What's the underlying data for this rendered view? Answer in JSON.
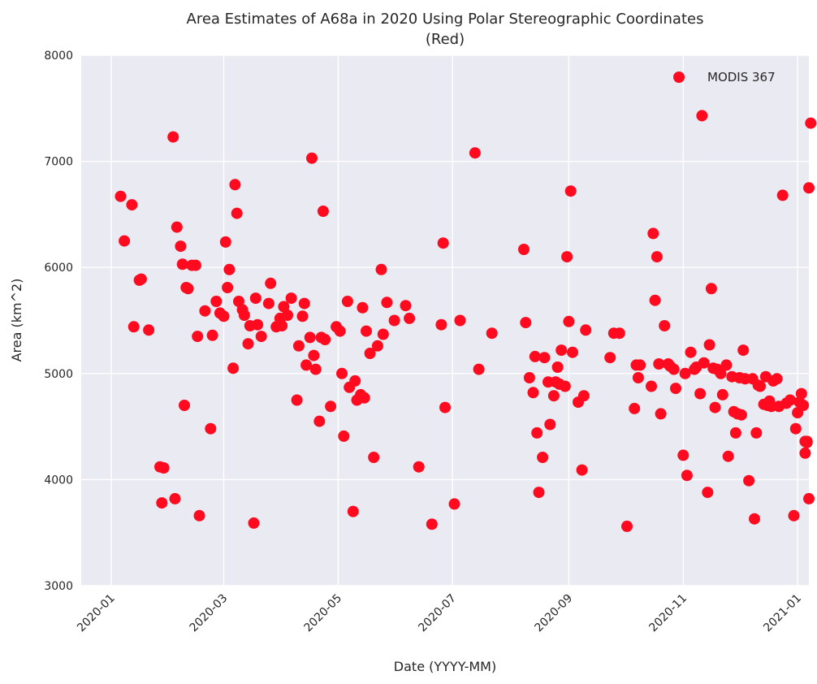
{
  "chart_data": {
    "type": "scatter",
    "title": "Area Estimates of A68a in 2020 Using Polar Stereographic Coordinates",
    "subtitle": "(Red)",
    "xlabel": "Date (YYYY-MM)",
    "ylabel": "Area (km^2)",
    "xlim": [
      "2019-12-16",
      "2021-01-07"
    ],
    "ylim": [
      3000,
      8000
    ],
    "x_ticks": [
      "2020-01",
      "2020-03",
      "2020-05",
      "2020-07",
      "2020-09",
      "2020-11",
      "2021-01"
    ],
    "y_ticks": [
      "3000",
      "4000",
      "5000",
      "6000",
      "7000",
      "8000"
    ],
    "grid": true,
    "legend_position": "top-right",
    "background_color": "#eaeaf2",
    "series": [
      {
        "name": "MODIS 367",
        "color": "#ff0a1f",
        "points": [
          [
            "2020-01-06",
            6670
          ],
          [
            "2020-01-08",
            6250
          ],
          [
            "2020-01-12",
            6590
          ],
          [
            "2020-01-13",
            5440
          ],
          [
            "2020-01-16",
            5880
          ],
          [
            "2020-01-17",
            5890
          ],
          [
            "2020-01-21",
            5410
          ],
          [
            "2020-01-27",
            4120
          ],
          [
            "2020-01-28",
            3780
          ],
          [
            "2020-01-29",
            4110
          ],
          [
            "2020-02-03",
            7230
          ],
          [
            "2020-02-04",
            3820
          ],
          [
            "2020-02-05",
            6380
          ],
          [
            "2020-02-07",
            6200
          ],
          [
            "2020-02-08",
            6030
          ],
          [
            "2020-02-09",
            4700
          ],
          [
            "2020-02-10",
            5810
          ],
          [
            "2020-02-11",
            5800
          ],
          [
            "2020-02-13",
            6020
          ],
          [
            "2020-02-15",
            6020
          ],
          [
            "2020-02-16",
            5350
          ],
          [
            "2020-02-17",
            3660
          ],
          [
            "2020-02-20",
            5590
          ],
          [
            "2020-02-23",
            4480
          ],
          [
            "2020-02-24",
            5360
          ],
          [
            "2020-02-26",
            5680
          ],
          [
            "2020-02-28",
            5570
          ],
          [
            "2020-03-01",
            5540
          ],
          [
            "2020-03-02",
            6240
          ],
          [
            "2020-03-03",
            5810
          ],
          [
            "2020-03-04",
            5980
          ],
          [
            "2020-03-06",
            5050
          ],
          [
            "2020-03-07",
            6780
          ],
          [
            "2020-03-08",
            6510
          ],
          [
            "2020-03-09",
            5680
          ],
          [
            "2020-03-11",
            5600
          ],
          [
            "2020-03-12",
            5550
          ],
          [
            "2020-03-14",
            5280
          ],
          [
            "2020-03-15",
            5450
          ],
          [
            "2020-03-17",
            3590
          ],
          [
            "2020-03-18",
            5710
          ],
          [
            "2020-03-19",
            5460
          ],
          [
            "2020-03-21",
            5350
          ],
          [
            "2020-03-26",
            5850
          ],
          [
            "2020-03-25",
            5660
          ],
          [
            "2020-03-29",
            5440
          ],
          [
            "2020-03-31",
            5520
          ],
          [
            "2020-04-01",
            5450
          ],
          [
            "2020-04-02",
            5630
          ],
          [
            "2020-04-04",
            5550
          ],
          [
            "2020-04-06",
            5710
          ],
          [
            "2020-04-09",
            4750
          ],
          [
            "2020-04-10",
            5260
          ],
          [
            "2020-04-12",
            5540
          ],
          [
            "2020-04-13",
            5660
          ],
          [
            "2020-04-14",
            5080
          ],
          [
            "2020-04-16",
            5340
          ],
          [
            "2020-04-17",
            7030
          ],
          [
            "2020-04-18",
            5170
          ],
          [
            "2020-04-19",
            5040
          ],
          [
            "2020-04-21",
            4550
          ],
          [
            "2020-04-22",
            5340
          ],
          [
            "2020-04-23",
            6530
          ],
          [
            "2020-04-24",
            5320
          ],
          [
            "2020-04-27",
            4690
          ],
          [
            "2020-04-30",
            5440
          ],
          [
            "2020-05-02",
            5400
          ],
          [
            "2020-05-03",
            5000
          ],
          [
            "2020-05-04",
            4410
          ],
          [
            "2020-05-06",
            5680
          ],
          [
            "2020-05-07",
            4870
          ],
          [
            "2020-05-09",
            3700
          ],
          [
            "2020-05-10",
            4930
          ],
          [
            "2020-05-11",
            4750
          ],
          [
            "2020-05-13",
            4800
          ],
          [
            "2020-05-14",
            5620
          ],
          [
            "2020-05-15",
            4770
          ],
          [
            "2020-05-16",
            5400
          ],
          [
            "2020-05-18",
            5190
          ],
          [
            "2020-05-20",
            4210
          ],
          [
            "2020-05-22",
            5260
          ],
          [
            "2020-05-24",
            5980
          ],
          [
            "2020-05-25",
            5370
          ],
          [
            "2020-05-27",
            5670
          ],
          [
            "2020-05-31",
            5500
          ],
          [
            "2020-06-06",
            5640
          ],
          [
            "2020-06-08",
            5520
          ],
          [
            "2020-06-13",
            4120
          ],
          [
            "2020-06-20",
            3580
          ],
          [
            "2020-06-25",
            5460
          ],
          [
            "2020-06-26",
            6230
          ],
          [
            "2020-06-27",
            4680
          ],
          [
            "2020-07-02",
            3770
          ],
          [
            "2020-07-05",
            5500
          ],
          [
            "2020-07-13",
            7080
          ],
          [
            "2020-07-15",
            5040
          ],
          [
            "2020-07-22",
            5380
          ],
          [
            "2020-08-08",
            6170
          ],
          [
            "2020-08-09",
            5480
          ],
          [
            "2020-08-11",
            4960
          ],
          [
            "2020-08-13",
            4820
          ],
          [
            "2020-08-14",
            5160
          ],
          [
            "2020-08-15",
            4440
          ],
          [
            "2020-08-16",
            3880
          ],
          [
            "2020-08-18",
            4210
          ],
          [
            "2020-08-19",
            5150
          ],
          [
            "2020-08-21",
            4920
          ],
          [
            "2020-08-22",
            4520
          ],
          [
            "2020-08-24",
            4790
          ],
          [
            "2020-08-25",
            4920
          ],
          [
            "2020-08-26",
            5060
          ],
          [
            "2020-08-27",
            4900
          ],
          [
            "2020-08-28",
            5220
          ],
          [
            "2020-08-30",
            4880
          ],
          [
            "2020-08-31",
            6100
          ],
          [
            "2020-09-01",
            5490
          ],
          [
            "2020-09-02",
            6720
          ],
          [
            "2020-09-03",
            5200
          ],
          [
            "2020-09-06",
            4730
          ],
          [
            "2020-09-08",
            4090
          ],
          [
            "2020-09-09",
            4790
          ],
          [
            "2020-09-10",
            5410
          ],
          [
            "2020-09-23",
            5150
          ],
          [
            "2020-09-25",
            5380
          ],
          [
            "2020-09-28",
            5380
          ],
          [
            "2020-10-02",
            3560
          ],
          [
            "2020-10-06",
            4670
          ],
          [
            "2020-10-07",
            5080
          ],
          [
            "2020-10-08",
            4960
          ],
          [
            "2020-10-09",
            5080
          ],
          [
            "2020-10-15",
            4880
          ],
          [
            "2020-10-16",
            6320
          ],
          [
            "2020-10-17",
            5690
          ],
          [
            "2020-10-18",
            6100
          ],
          [
            "2020-10-19",
            5090
          ],
          [
            "2020-10-20",
            4620
          ],
          [
            "2020-10-22",
            5450
          ],
          [
            "2020-10-24",
            5090
          ],
          [
            "2020-10-25",
            5070
          ],
          [
            "2020-10-27",
            5040
          ],
          [
            "2020-10-28",
            4860
          ],
          [
            "2020-11-01",
            4230
          ],
          [
            "2020-11-02",
            5000
          ],
          [
            "2020-11-03",
            4040
          ],
          [
            "2020-11-05",
            5200
          ],
          [
            "2020-11-07",
            5040
          ],
          [
            "2020-11-08",
            5060
          ],
          [
            "2020-11-10",
            4810
          ],
          [
            "2020-11-11",
            7430
          ],
          [
            "2020-11-12",
            5100
          ],
          [
            "2020-11-14",
            3880
          ],
          [
            "2020-11-15",
            5270
          ],
          [
            "2020-11-16",
            5800
          ],
          [
            "2020-11-17",
            5050
          ],
          [
            "2020-11-18",
            4680
          ],
          [
            "2020-11-19",
            5040
          ],
          [
            "2020-11-21",
            5000
          ],
          [
            "2020-11-22",
            4800
          ],
          [
            "2020-11-24",
            5080
          ],
          [
            "2020-11-25",
            4220
          ],
          [
            "2020-11-27",
            4970
          ],
          [
            "2020-11-28",
            4640
          ],
          [
            "2020-11-29",
            4440
          ],
          [
            "2020-11-30",
            4620
          ],
          [
            "2020-12-01",
            4960
          ],
          [
            "2020-12-02",
            4610
          ],
          [
            "2020-12-03",
            5220
          ],
          [
            "2020-12-04",
            4950
          ],
          [
            "2020-12-06",
            3990
          ],
          [
            "2020-12-08",
            4950
          ],
          [
            "2020-12-09",
            3630
          ],
          [
            "2020-12-10",
            4440
          ],
          [
            "2020-12-11",
            4890
          ],
          [
            "2020-12-12",
            4880
          ],
          [
            "2020-12-14",
            4710
          ],
          [
            "2020-12-15",
            4970
          ],
          [
            "2020-12-16",
            4700
          ],
          [
            "2020-12-17",
            4740
          ],
          [
            "2020-12-18",
            4690
          ],
          [
            "2020-12-19",
            4930
          ],
          [
            "2020-12-21",
            4950
          ],
          [
            "2020-12-22",
            4690
          ],
          [
            "2020-12-24",
            6680
          ],
          [
            "2020-12-26",
            4720
          ],
          [
            "2020-12-28",
            4750
          ],
          [
            "2020-12-30",
            3660
          ],
          [
            "2020-12-31",
            4480
          ],
          [
            "2021-01-01",
            4630
          ],
          [
            "2021-01-02",
            4730
          ],
          [
            "2021-01-03",
            4810
          ],
          [
            "2021-01-04",
            4700
          ],
          [
            "2021-01-05",
            4360
          ],
          [
            "2021-01-05",
            4250
          ],
          [
            "2021-01-06",
            4360
          ],
          [
            "2021-01-06",
            4350
          ],
          [
            "2021-01-07",
            3820
          ],
          [
            "2021-01-07",
            6750
          ],
          [
            "2021-01-08",
            7360
          ]
        ]
      }
    ]
  }
}
